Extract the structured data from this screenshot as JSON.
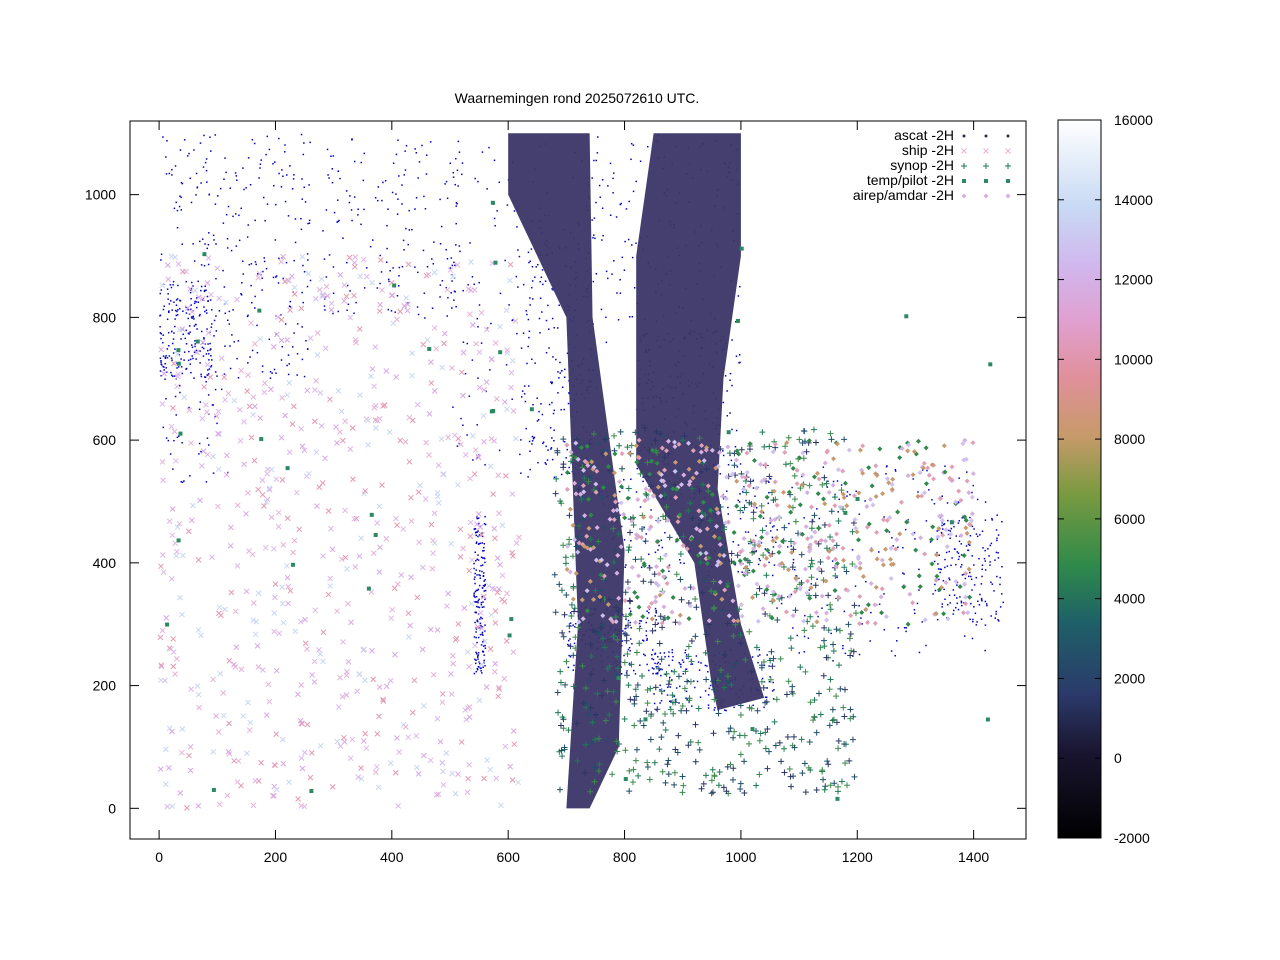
{
  "chart_data": {
    "type": "scatter",
    "title": "Waarnemingen rond 2025072610 UTC.",
    "xlim": [
      -50,
      1490
    ],
    "ylim": [
      -50,
      1120
    ],
    "xticks": [
      0,
      200,
      400,
      600,
      800,
      1000,
      1200,
      1400
    ],
    "yticks": [
      0,
      200,
      400,
      600,
      800,
      1000
    ],
    "grid": false,
    "legend_position": "top-right",
    "colorbar": {
      "range": [
        -2000,
        16000
      ],
      "ticks": [
        -2000,
        0,
        2000,
        4000,
        6000,
        8000,
        10000,
        12000,
        14000,
        16000
      ],
      "colormap": "cubehelix"
    },
    "series": [
      {
        "name": "ascat -2H",
        "marker": "dot",
        "color": "#2b2a5e"
      },
      {
        "name": "ship -2H",
        "marker": "x",
        "color": "#e6b3d6"
      },
      {
        "name": "synop -2H",
        "marker": "plus",
        "color": "#1f7a55"
      },
      {
        "name": "temp/pilot -2H",
        "marker": "square",
        "color": "#2c8a62"
      },
      {
        "name": "airep/amdar -2H",
        "marker": "diamond",
        "color": "#d8b0e0"
      }
    ],
    "coastline_color": "#0000c8",
    "swath_color": "#3a3566"
  }
}
